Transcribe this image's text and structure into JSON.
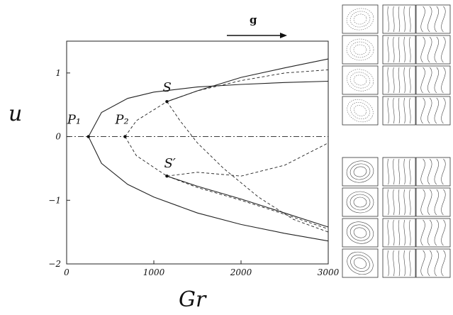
{
  "gravity_label": "g",
  "chart_data": {
    "type": "line",
    "title": "",
    "xlabel": "Gr",
    "ylabel": "u",
    "xlim": [
      0,
      3000
    ],
    "ylim": [
      -2,
      1.5
    ],
    "x_ticks": [
      "0",
      "1000",
      "2000",
      "3000"
    ],
    "y_ticks": [
      "1",
      "0",
      "−1",
      "−2"
    ],
    "grid": false,
    "points": [
      {
        "label": "P₁",
        "x": 250,
        "y": 0
      },
      {
        "label": "P₂",
        "x": 670,
        "y": 0
      },
      {
        "label": "S",
        "x": 1150,
        "y": 0.55
      },
      {
        "label": "S′",
        "x": 1150,
        "y": -0.62
      }
    ],
    "series": [
      {
        "style": "solid",
        "x": [
          250,
          400,
          700,
          1000,
          1500,
          2000,
          2500,
          3000
        ],
        "y": [
          0,
          0.38,
          0.6,
          0.7,
          0.78,
          0.82,
          0.85,
          0.87
        ]
      },
      {
        "style": "solid",
        "x": [
          250,
          400,
          700,
          1000,
          1500,
          2000,
          2500,
          3000
        ],
        "y": [
          0,
          -0.42,
          -0.75,
          -0.95,
          -1.2,
          -1.38,
          -1.52,
          -1.64
        ]
      },
      {
        "style": "solid",
        "x": [
          1150,
          1500,
          2000,
          2500,
          3000
        ],
        "y": [
          0.55,
          0.72,
          0.93,
          1.08,
          1.22
        ]
      },
      {
        "style": "solid",
        "x": [
          1150,
          1500,
          2000,
          2500,
          3000
        ],
        "y": [
          -0.62,
          -0.78,
          -0.98,
          -1.2,
          -1.42
        ]
      },
      {
        "style": "dashed",
        "x": [
          670,
          800,
          1150,
          1500,
          2000,
          2500,
          3000
        ],
        "y": [
          0,
          0.25,
          0.55,
          0.72,
          0.88,
          1.0,
          1.05
        ]
      },
      {
        "style": "dashed",
        "x": [
          670,
          800,
          1150,
          1500,
          2000,
          2500,
          3000
        ],
        "y": [
          0,
          -0.3,
          -0.62,
          -0.8,
          -1.0,
          -1.22,
          -1.45
        ]
      },
      {
        "style": "dashed",
        "x": [
          1150,
          1300,
          1500,
          1800,
          2200,
          2600,
          3000
        ],
        "y": [
          0.55,
          0.25,
          -0.1,
          -0.5,
          -0.95,
          -1.3,
          -1.5
        ]
      },
      {
        "style": "dashed",
        "x": [
          1150,
          1500,
          2000,
          2500,
          3000
        ],
        "y": [
          -0.62,
          -0.56,
          -0.62,
          -0.45,
          -0.1
        ]
      },
      {
        "style": "dashdot",
        "x": [
          0,
          3000
        ],
        "y": [
          0,
          0
        ]
      }
    ]
  }
}
